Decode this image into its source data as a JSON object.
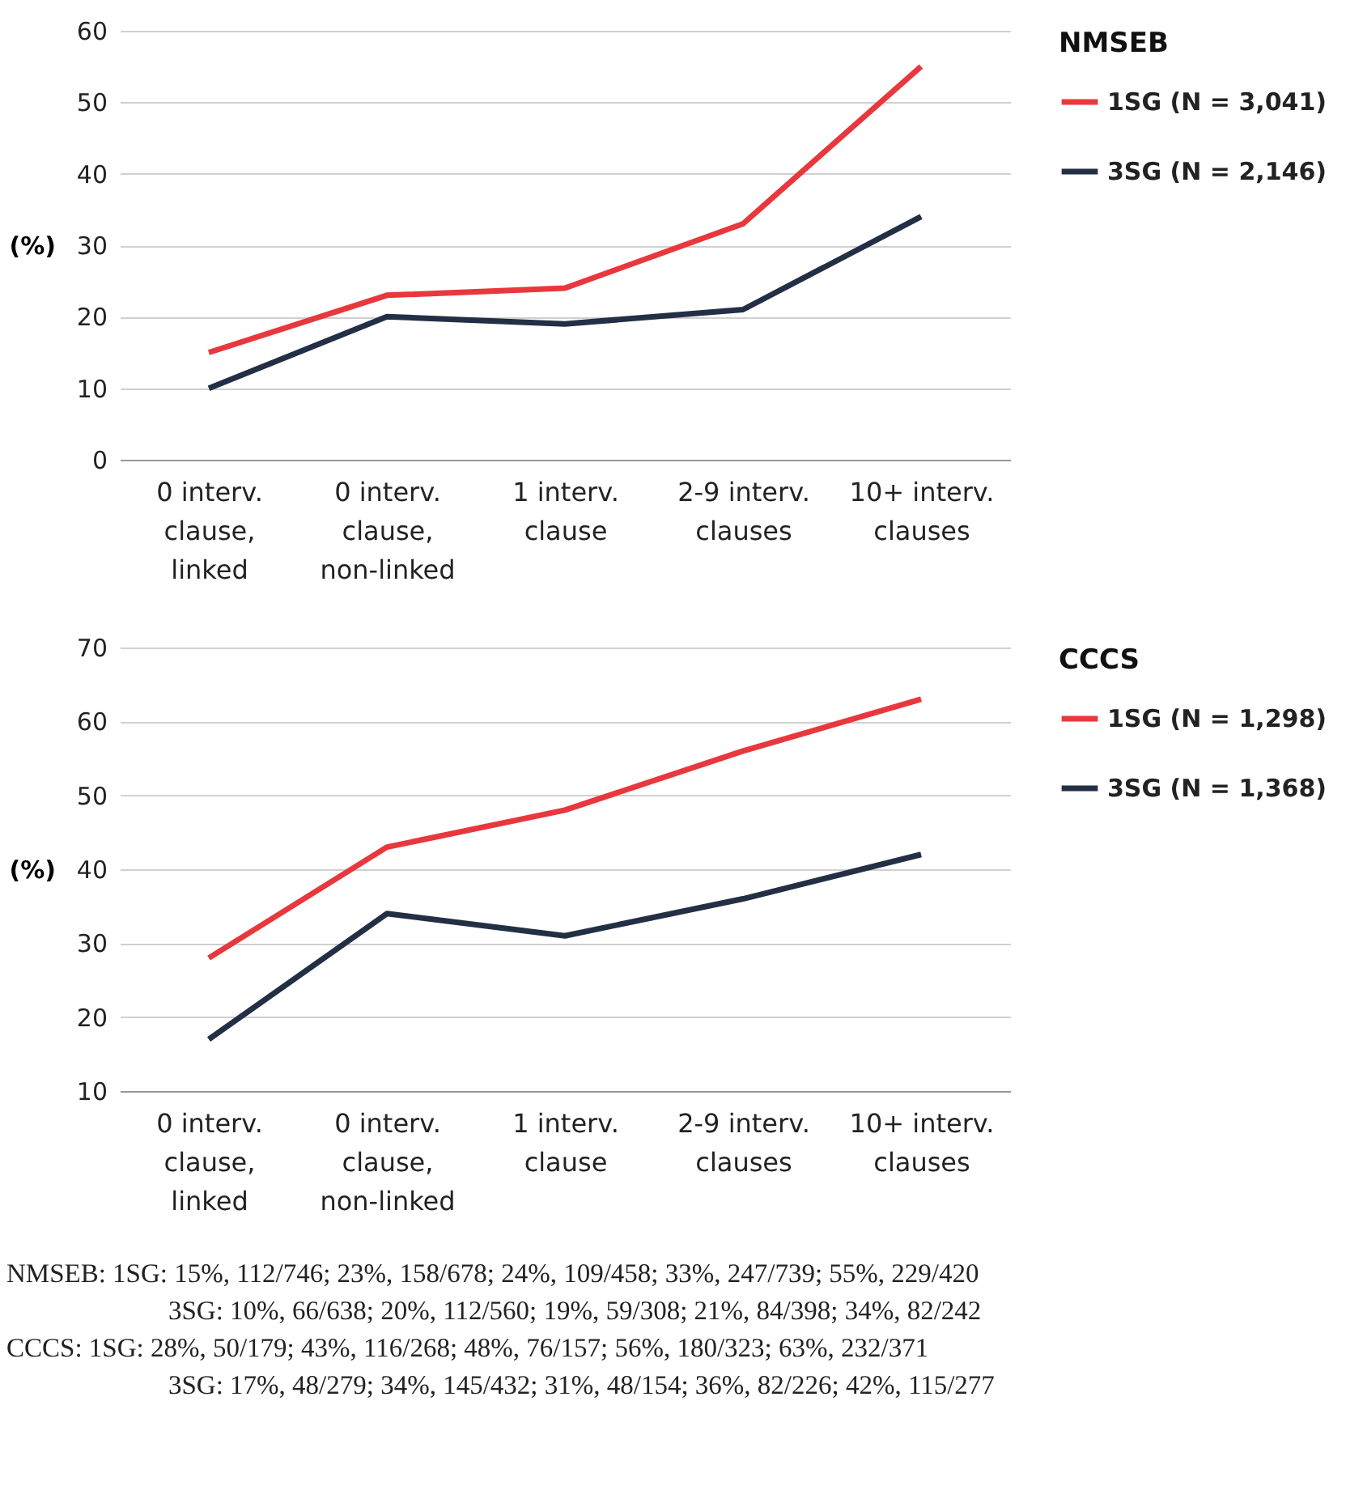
{
  "chart_data": [
    {
      "type": "line",
      "legend_title": "NMSEB",
      "ylabel": "(%)",
      "categories": [
        "0 interv. clause, linked",
        "0 interv. clause, non-linked",
        "1 interv. clause",
        "2-9 interv. clauses",
        "10+ interv. clauses"
      ],
      "series": [
        {
          "name": "1SG (N = 3,041)",
          "color": "#e8383d",
          "values": [
            15,
            23,
            24,
            33,
            55
          ]
        },
        {
          "name": "3SG (N = 2,146)",
          "color": "#232f45",
          "values": [
            10,
            20,
            19,
            21,
            34
          ]
        }
      ],
      "ylim": [
        0,
        60
      ],
      "yticks": [
        0,
        10,
        20,
        30,
        40,
        50,
        60
      ],
      "grid": "y",
      "legend": "top right",
      "marker": "none",
      "line_style": "solid",
      "annotations": [
        "NMSEB:   1SG: 15%, 112/746; 23%, 158/678; 24%, 109/458; 33%, 247/739; 55%, 229/420",
        "3SG: 10%, 66/638; 20%, 112/560; 19%, 59/308; 21%, 84/398; 34%, 82/242"
      ]
    },
    {
      "type": "line",
      "legend_title": "CCCS",
      "ylabel": "(%)",
      "categories": [
        "0 interv. clause, linked",
        "0 interv. clause, non-linked",
        "1 interv. clause",
        "2-9 interv. clauses",
        "10+ interv. clauses"
      ],
      "series": [
        {
          "name": "1SG (N = 1,298)",
          "color": "#e8383d",
          "values": [
            28,
            43,
            48,
            56,
            63
          ]
        },
        {
          "name": "3SG (N = 1,368)",
          "color": "#232f45",
          "values": [
            17,
            34,
            31,
            36,
            42
          ]
        }
      ],
      "ylim": [
        10,
        70
      ],
      "yticks": [
        10,
        20,
        30,
        40,
        50,
        60,
        70
      ],
      "grid": "y",
      "legend": "top right",
      "marker": "none",
      "line_style": "solid",
      "annotations": [
        "CCCS:       1SG: 28%, 50/179; 43%, 116/268; 48%, 76/157; 56%, 180/323; 63%, 232/371",
        "3SG: 17%, 48/279; 34%, 145/432; 31%, 48/154; 36%, 82/226; 42%, 115/277"
      ]
    }
  ]
}
